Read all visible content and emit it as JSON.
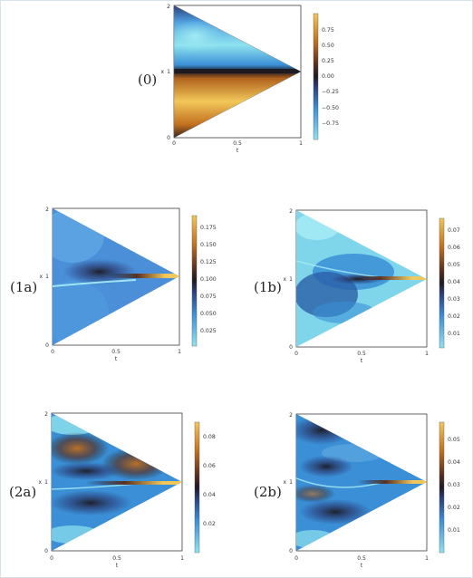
{
  "colors": {
    "cmap_low": "#8fe3ef",
    "cmap_mid": "#1d1a22",
    "cmap_high": "#f2c75a",
    "frame_border": "#d6e4ea"
  },
  "common_axes": {
    "xlabel": "t",
    "ylabel": "x",
    "xticks": [
      "0",
      "0.5",
      "1"
    ],
    "yticks": [
      "0",
      "1",
      "2"
    ]
  },
  "panels": [
    {
      "id": "p0",
      "label": "(0)",
      "colorbar_ticks": [
        "0.75",
        "0.50",
        "0.25",
        "0.00",
        "−0.25",
        "−0.50",
        "−0.75"
      ],
      "colorbar_range": [
        -1,
        1
      ]
    },
    {
      "id": "p1a",
      "label": "(1a)",
      "colorbar_ticks": [
        "0.175",
        "0.150",
        "0.125",
        "0.100",
        "0.075",
        "0.050",
        "0.025"
      ],
      "colorbar_range": [
        0,
        0.19
      ]
    },
    {
      "id": "p1b",
      "label": "(1b)",
      "colorbar_ticks": [
        "0.07",
        "0.06",
        "0.05",
        "0.04",
        "0.03",
        "0.02",
        "0.01"
      ],
      "colorbar_range": [
        0,
        0.075
      ]
    },
    {
      "id": "p2a",
      "label": "(2a)",
      "colorbar_ticks": [
        "0.08",
        "0.06",
        "0.04",
        "0.02"
      ],
      "colorbar_range": [
        0,
        0.09
      ]
    },
    {
      "id": "p2b",
      "label": "(2b)",
      "colorbar_ticks": [
        "0.05",
        "0.04",
        "0.03",
        "0.02",
        "0.01"
      ],
      "colorbar_range": [
        0,
        0.058
      ]
    }
  ]
}
